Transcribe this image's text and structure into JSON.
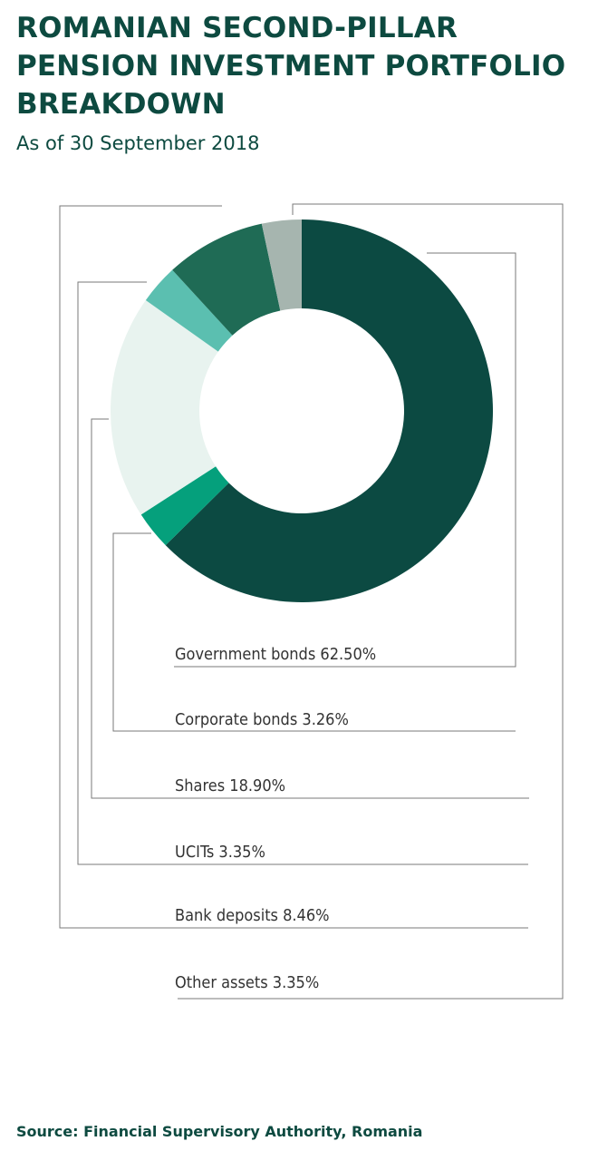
{
  "title": "ROMANIAN SECOND-PILLAR PENSION INVESTMENT PORTFOLIO BREAKDOWN",
  "subtitle": "As of 30 September 2018",
  "source": "Source: Financial Supervisory Authority, Romania",
  "chart_data": {
    "type": "pie",
    "variant": "donut",
    "categories": [
      "Government bonds",
      "Corporate bonds",
      "Shares",
      "UCITs",
      "Bank deposits",
      "Other assets"
    ],
    "values": [
      62.5,
      3.26,
      18.9,
      3.35,
      8.46,
      3.35
    ],
    "labels": [
      "Government bonds 62.50%",
      "Corporate bonds 3.26%",
      "Shares 18.90%",
      "UCITs 3.35%",
      "Bank deposits 8.46%",
      "Other assets 3.35%"
    ],
    "colors": [
      "#0c4a42",
      "#05a07c",
      "#e8f3ef",
      "#5bbfb0",
      "#1f6b55",
      "#a6b5af"
    ],
    "legend_position": "bottom",
    "start_angle": "top, clockwise"
  }
}
